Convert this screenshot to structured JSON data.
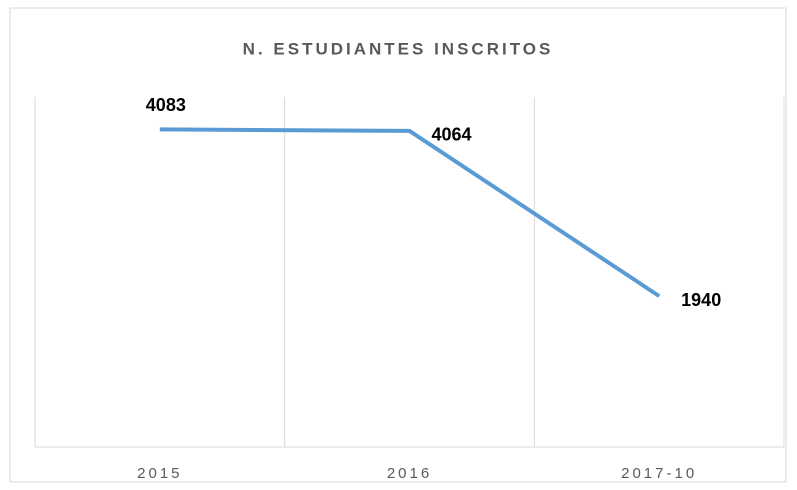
{
  "chart_data": {
    "type": "line",
    "title": "N. ESTUDIANTES INSCRITOS",
    "categories": [
      "2015",
      "2016",
      "2017-10"
    ],
    "values": [
      4083,
      4064,
      1940
    ],
    "color": "#5b9bd5",
    "ylim": [
      0,
      4500
    ],
    "grid": true
  }
}
